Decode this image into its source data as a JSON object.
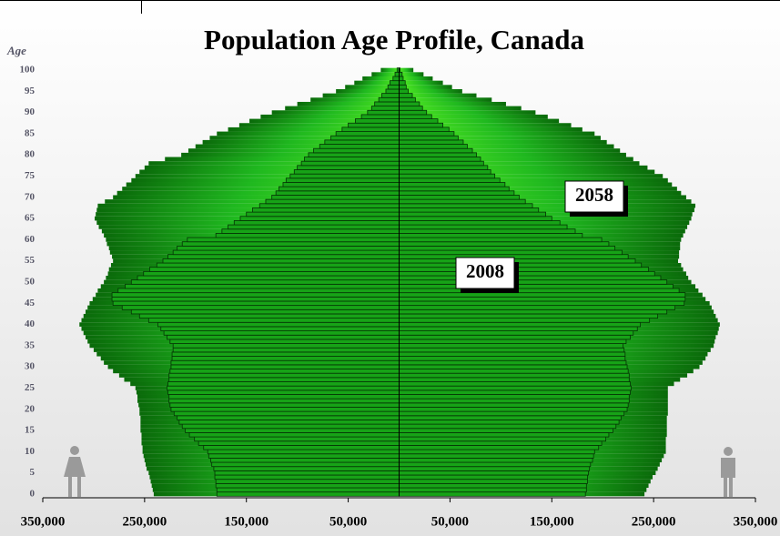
{
  "chart_data": {
    "type": "pyramid",
    "title": "Population Age Profile, Canada",
    "y_label": "Age",
    "annotations": [
      "2058",
      "2008"
    ],
    "categories_axis": "age",
    "xlim": [
      -350000,
      350000
    ],
    "xticks": [
      {
        "value": -350000,
        "label": "350,000"
      },
      {
        "value": -250000,
        "label": "250,000"
      },
      {
        "value": -150000,
        "label": "150,000"
      },
      {
        "value": -50000,
        "label": "50,000"
      },
      {
        "value": 50000,
        "label": "50,000"
      },
      {
        "value": 150000,
        "label": "150,000"
      },
      {
        "value": 250000,
        "label": "250,000"
      },
      {
        "value": 350000,
        "label": "350,000"
      }
    ],
    "ylim": [
      0,
      100
    ],
    "yticks": [
      0,
      5,
      10,
      15,
      20,
      25,
      30,
      35,
      40,
      45,
      50,
      55,
      60,
      65,
      70,
      75,
      80,
      85,
      90,
      95,
      100
    ],
    "series": [
      {
        "name": "2058",
        "color": "#0a8a0a",
        "values": [
          -241000,
          -242000,
          -243000,
          -244000,
          -245000,
          -246000,
          -248000,
          -249000,
          -250000,
          -251000,
          -252000,
          -252000,
          -253000,
          -253000,
          -253000,
          -254000,
          -254000,
          -254000,
          -254000,
          -255000,
          -255000,
          -256000,
          -257000,
          -257000,
          -258000,
          -259000,
          -264000,
          -270000,
          -275000,
          -281000,
          -286000,
          -290000,
          -293000,
          -297000,
          -300000,
          -304000,
          -306000,
          -308000,
          -310000,
          -312000,
          -314000,
          -312000,
          -310000,
          -308000,
          -306000,
          -304000,
          -301000,
          -298000,
          -296000,
          -293000,
          -290000,
          -288000,
          -286000,
          -285000,
          -283000,
          -281000,
          -282000,
          -284000,
          -285000,
          -287000,
          -288000,
          -290000,
          -292000,
          -295000,
          -297000,
          -299000,
          -298000,
          -297000,
          -296000,
          -289000,
          -281000,
          -277000,
          -272000,
          -268000,
          -263000,
          -259000,
          -255000,
          -250000,
          -246000,
          -230000,
          -214000,
          -207000,
          -200000,
          -193000,
          -186000,
          -179000,
          -168000,
          -157000,
          -147000,
          -136000,
          -125000,
          -112000,
          -100000,
          -87000,
          -75000,
          -62000,
          -53000,
          -44000,
          -36000,
          -27000,
          -18000
        ]
      },
      {
        "name": "2058",
        "color": "#0a8a0a",
        "values": [
          241000,
          243000,
          245000,
          247000,
          249000,
          252000,
          254000,
          256000,
          258000,
          260000,
          262000,
          262000,
          262000,
          262000,
          263000,
          263000,
          263000,
          263000,
          263000,
          264000,
          264000,
          264000,
          264000,
          264000,
          264000,
          264000,
          270000,
          276000,
          283000,
          289000,
          295000,
          298000,
          301000,
          303000,
          306000,
          309000,
          310000,
          311000,
          313000,
          314000,
          315000,
          313000,
          311000,
          309000,
          307000,
          305000,
          301000,
          298000,
          294000,
          291000,
          287000,
          284000,
          282000,
          279000,
          277000,
          274000,
          275000,
          275000,
          276000,
          276000,
          277000,
          279000,
          281000,
          283000,
          285000,
          287000,
          288000,
          290000,
          291000,
          287000,
          282000,
          277000,
          273000,
          268000,
          264000,
          259000,
          251000,
          244000,
          236000,
          230000,
          223000,
          217000,
          211000,
          204000,
          198000,
          192000,
          180000,
          169000,
          157000,
          146000,
          134000,
          120000,
          105000,
          91000,
          76000,
          62000,
          52000,
          43000,
          33000,
          24000,
          14000
        ]
      },
      {
        "name": "2008",
        "color": "#17a317",
        "values": [
          -179000,
          -179000,
          -180000,
          -180000,
          -181000,
          -181000,
          -182000,
          -184000,
          -185000,
          -187000,
          -188000,
          -192000,
          -197000,
          -201000,
          -206000,
          -210000,
          -213000,
          -216000,
          -218000,
          -221000,
          -224000,
          -225000,
          -226000,
          -226000,
          -227000,
          -228000,
          -227000,
          -226000,
          -226000,
          -225000,
          -224000,
          -224000,
          -223000,
          -223000,
          -222000,
          -222000,
          -225000,
          -228000,
          -231000,
          -234000,
          -237000,
          -246000,
          -255000,
          -263000,
          -272000,
          -281000,
          -282000,
          -282000,
          -276000,
          -269000,
          -263000,
          -257000,
          -251000,
          -245000,
          -238000,
          -232000,
          -227000,
          -222000,
          -218000,
          -213000,
          -208000,
          -180000,
          -174000,
          -168000,
          -162000,
          -156000,
          -150000,
          -144000,
          -137000,
          -131000,
          -125000,
          -121000,
          -118000,
          -114000,
          -111000,
          -107000,
          -103000,
          -100000,
          -96000,
          -93000,
          -89000,
          -84000,
          -78000,
          -73000,
          -67000,
          -62000,
          -56000,
          -50000,
          -43000,
          -37000,
          -31000,
          -27000,
          -24000,
          -20000,
          -17000,
          -13000,
          -11000,
          -9000,
          -6000,
          -4000,
          -2000
        ]
      },
      {
        "name": "2008",
        "color": "#17a317",
        "values": [
          183000,
          184000,
          184000,
          185000,
          185000,
          186000,
          187000,
          188000,
          190000,
          191000,
          192000,
          196000,
          199000,
          203000,
          206000,
          210000,
          213000,
          216000,
          218000,
          221000,
          224000,
          225000,
          226000,
          226000,
          227000,
          228000,
          227000,
          226000,
          226000,
          225000,
          224000,
          223000,
          222000,
          222000,
          221000,
          220000,
          223000,
          227000,
          230000,
          234000,
          237000,
          246000,
          254000,
          263000,
          271000,
          280000,
          281000,
          281000,
          275000,
          269000,
          263000,
          257000,
          251000,
          245000,
          238000,
          232000,
          225000,
          219000,
          212000,
          206000,
          199000,
          180000,
          173000,
          165000,
          158000,
          150000,
          144000,
          137000,
          131000,
          124000,
          118000,
          113000,
          108000,
          104000,
          99000,
          94000,
          90000,
          87000,
          83000,
          80000,
          76000,
          72000,
          67000,
          63000,
          58000,
          54000,
          49000,
          43000,
          38000,
          32000,
          27000,
          23000,
          20000,
          16000,
          13000,
          9000,
          7000,
          6000,
          4000,
          3000,
          1000
        ]
      }
    ]
  }
}
